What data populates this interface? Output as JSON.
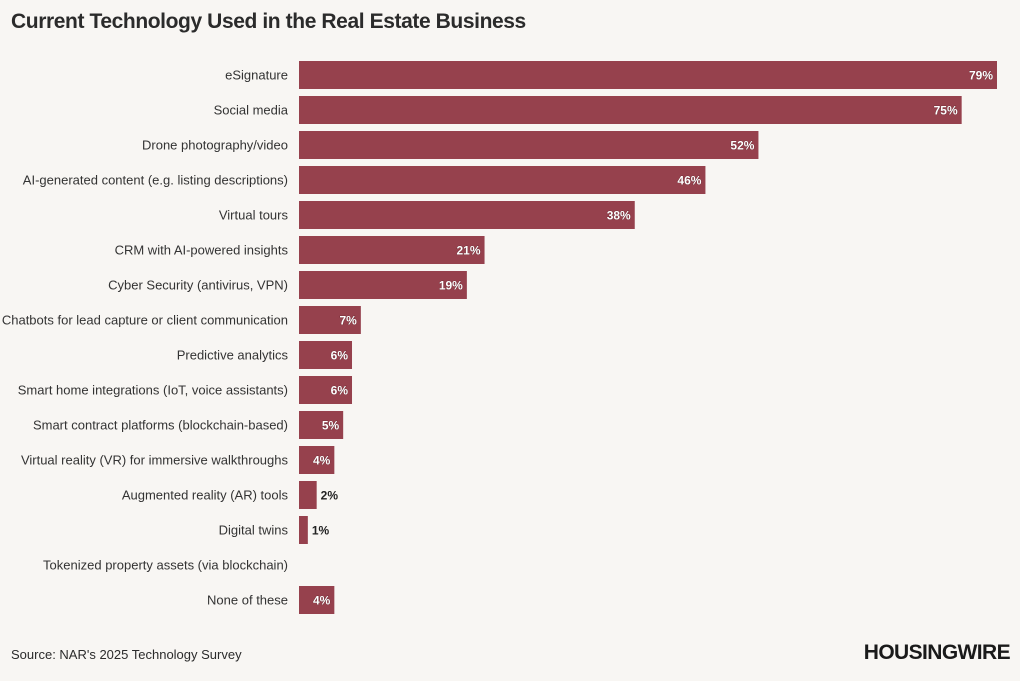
{
  "header": {
    "title": "Current Technology Used in the Real Estate Business"
  },
  "footer": {
    "source": "Source: NAR's 2025 Technology Survey",
    "logo": "HOUSINGWIRE"
  },
  "colors": {
    "bar": "#96414d",
    "background": "#f8f6f3",
    "label_inside": "#ffffff",
    "label_outside": "#222222"
  },
  "chart_data": {
    "type": "bar",
    "orientation": "horizontal",
    "title": "Current Technology Used in the Real Estate Business",
    "xlabel": "",
    "ylabel": "",
    "xlim": [
      0,
      80
    ],
    "grid": false,
    "legend": "none",
    "value_suffix": "%",
    "categories": [
      "eSignature",
      "Social media",
      "Drone photography/video",
      "AI-generated content (e.g. listing descriptions)",
      "Virtual tours",
      "CRM with AI-powered insights",
      "Cyber Security (antivirus, VPN)",
      "Chatbots for lead capture or client communication",
      "Predictive analytics",
      "Smart home integrations (IoT, voice assistants)",
      "Smart contract platforms (blockchain-based)",
      "Virtual reality (VR) for immersive walkthroughs",
      "Augmented reality (AR) tools",
      "Digital twins",
      "Tokenized property assets (via blockchain)",
      "None of these"
    ],
    "values": [
      79,
      75,
      52,
      46,
      38,
      21,
      19,
      7,
      6,
      6,
      5,
      4,
      2,
      1,
      0,
      4
    ],
    "labels": [
      "79%",
      "75%",
      "52%",
      "46%",
      "38%",
      "21%",
      "19%",
      "7%",
      "6%",
      "6%",
      "5%",
      "4%",
      "2%",
      "1%",
      "",
      "4%"
    ]
  }
}
